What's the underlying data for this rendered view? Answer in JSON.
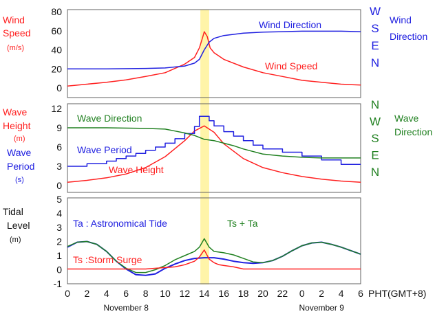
{
  "colors": {
    "red": "#ff2020",
    "blue": "#2020e0",
    "green": "#208020",
    "highlight": "#fff4a8",
    "frame": "#606060"
  },
  "chart_data": [
    {
      "type": "line",
      "panel": "wind",
      "ylabel_lines": [
        "Wind",
        "Speed"
      ],
      "yunit": "(m/s)",
      "ylim": [
        0,
        80
      ],
      "yticks": [
        "0",
        "20",
        "40",
        "60",
        "80"
      ],
      "right_ticks": [
        "W",
        "S",
        "E",
        "N"
      ],
      "right_label_lines": [
        "Wind",
        "Direction"
      ],
      "series": [
        {
          "name": "Wind Speed",
          "color": "red",
          "x": [
            0,
            2,
            4,
            6,
            8,
            10,
            12,
            13,
            13.5,
            13.8,
            14,
            14.3,
            14.6,
            15,
            16,
            18,
            20,
            22,
            24,
            26,
            28,
            30
          ],
          "y": [
            2,
            4,
            6,
            8.5,
            12,
            16,
            25,
            32,
            42,
            52,
            59,
            54,
            42,
            37,
            30,
            22,
            16,
            12,
            8,
            6,
            4,
            3
          ]
        },
        {
          "name": "Wind Direction",
          "color": "blue",
          "x": [
            0,
            4,
            8,
            10,
            12,
            13,
            13.5,
            14,
            14.5,
            15,
            16,
            18,
            20,
            22,
            24,
            26,
            28,
            30
          ],
          "y": [
            20,
            20,
            20.5,
            21,
            23,
            26,
            30,
            40,
            48,
            52,
            55,
            57.5,
            58.5,
            59,
            59.5,
            59.5,
            59.5,
            59
          ]
        }
      ]
    },
    {
      "type": "line",
      "panel": "wave",
      "ylabel_lines": [
        "Wave",
        "Height"
      ],
      "yunit": "(m)",
      "ylabel2_lines": [
        "Wave",
        "Period"
      ],
      "yunit2": "(s)",
      "ylim": [
        0,
        12
      ],
      "yticks": [
        "0",
        "3",
        "6",
        "9",
        "12"
      ],
      "right_ticks": [
        "N",
        "W",
        "S",
        "E",
        "N"
      ],
      "right_label_lines": [
        "Wave",
        "Direction"
      ],
      "series": [
        {
          "name": "Wave Height",
          "color": "red",
          "x": [
            0,
            2,
            4,
            6,
            8,
            10,
            12,
            13,
            14,
            15,
            16,
            18,
            20,
            22,
            24,
            26,
            28,
            30
          ],
          "y": [
            0.5,
            0.8,
            1.2,
            1.8,
            2.8,
            4.5,
            7,
            8.5,
            9.3,
            8.3,
            6.5,
            4.2,
            2.8,
            2,
            1.4,
            1,
            0.7,
            0.5
          ]
        },
        {
          "name": "Wave Period",
          "color": "blue",
          "x": [
            0,
            2,
            2,
            4,
            4,
            5,
            5,
            6,
            6,
            7,
            7,
            8,
            8,
            9,
            9,
            10,
            10,
            11,
            11,
            12,
            12,
            13,
            13,
            13.5,
            13.5,
            14.5,
            14.5,
            15,
            15,
            16,
            16,
            17,
            17,
            18,
            18,
            19,
            19,
            20,
            20,
            22,
            22,
            24,
            24,
            26,
            26,
            28,
            28,
            30
          ],
          "y": [
            3,
            3,
            3.4,
            3.4,
            3.8,
            3.8,
            4.2,
            4.2,
            4.6,
            4.6,
            5,
            5,
            5.5,
            5.5,
            6,
            6,
            6.6,
            6.6,
            7.3,
            7.3,
            8.1,
            8.1,
            9.2,
            9.2,
            10.8,
            10.8,
            10.1,
            10.1,
            9.3,
            9.3,
            8.4,
            8.4,
            7.7,
            7.7,
            7,
            7,
            6.3,
            6.3,
            5.7,
            5.7,
            5.2,
            5.2,
            4.6,
            4.6,
            4,
            4,
            3.3,
            3.3
          ]
        },
        {
          "name": "Wave Direction",
          "color": "green",
          "x": [
            0,
            4,
            8,
            10,
            11,
            12,
            13,
            14,
            15,
            16,
            17,
            18,
            20,
            22,
            24,
            26,
            28,
            30
          ],
          "y": [
            9,
            9,
            8.9,
            8.8,
            8.5,
            8.2,
            7.8,
            7.2,
            7,
            6.6,
            6.2,
            5.7,
            4.9,
            4.6,
            4.4,
            4.3,
            4.3,
            4.3
          ]
        }
      ]
    },
    {
      "type": "line",
      "panel": "tide",
      "ylabel_lines": [
        "Tidal",
        "Level"
      ],
      "yunit": "(m)",
      "ylim": [
        -1,
        5
      ],
      "yticks": [
        "-1",
        "0",
        "1",
        "2",
        "3",
        "4",
        "5"
      ],
      "series": [
        {
          "name": "Ta : Astronomical Tide",
          "color": "blue",
          "x": [
            0,
            1,
            2,
            3,
            4,
            5,
            6,
            7,
            8,
            9,
            10,
            11,
            12,
            13,
            14,
            15,
            16,
            17,
            18,
            19,
            20,
            21,
            22,
            23,
            24,
            25,
            26,
            27,
            28,
            29,
            30
          ],
          "y": [
            1.6,
            1.95,
            2.0,
            1.8,
            1.3,
            0.6,
            0.05,
            -0.35,
            -0.4,
            -0.3,
            0.1,
            0.4,
            0.65,
            0.8,
            0.85,
            0.85,
            0.75,
            0.6,
            0.5,
            0.45,
            0.5,
            0.65,
            0.95,
            1.35,
            1.7,
            1.9,
            1.95,
            1.8,
            1.6,
            1.35,
            1.1
          ]
        },
        {
          "name": "Ts + Ta",
          "color": "green",
          "x": [
            0,
            1,
            2,
            3,
            4,
            5,
            6,
            7,
            8,
            9,
            10,
            11,
            12,
            13,
            13.5,
            14,
            14.5,
            15,
            16,
            17,
            18,
            19,
            20,
            21,
            22,
            23,
            24,
            25,
            26,
            27,
            28,
            29,
            30
          ],
          "y": [
            1.65,
            1.95,
            2.0,
            1.8,
            1.3,
            0.6,
            0.1,
            -0.2,
            -0.2,
            0,
            0.3,
            0.7,
            1.0,
            1.3,
            1.6,
            2.2,
            1.6,
            1.3,
            1.2,
            1.05,
            0.8,
            0.55,
            0.5,
            0.65,
            0.95,
            1.35,
            1.7,
            1.9,
            1.95,
            1.8,
            1.6,
            1.35,
            1.1
          ]
        },
        {
          "name": "Ts :Storm Surge",
          "color": "red",
          "x": [
            0,
            4,
            6,
            8,
            10,
            11,
            12,
            13,
            13.5,
            14,
            14.5,
            15,
            15.5,
            16,
            17,
            18,
            20,
            24,
            30
          ],
          "y": [
            0.05,
            0.05,
            0.05,
            0.05,
            0.15,
            0.2,
            0.35,
            0.6,
            0.9,
            1.4,
            0.75,
            0.5,
            0.35,
            0.3,
            0.2,
            0.05,
            0.05,
            0.05,
            0.05
          ]
        }
      ]
    }
  ],
  "x_axis": {
    "ticks": [
      "0",
      "2",
      "4",
      "6",
      "8",
      "10",
      "12",
      "14",
      "16",
      "18",
      "20",
      "22",
      "0",
      "2",
      "4",
      "6"
    ],
    "tick_values": [
      0,
      2,
      4,
      6,
      8,
      10,
      12,
      14,
      16,
      18,
      20,
      22,
      24,
      26,
      28,
      30
    ],
    "unit": "PHT(GMT+8)",
    "dates": [
      "November 8",
      "November 9"
    ],
    "date_positions": [
      6,
      26
    ],
    "range": [
      0,
      30
    ]
  },
  "highlight": {
    "from": 13.6,
    "to": 14.5
  }
}
